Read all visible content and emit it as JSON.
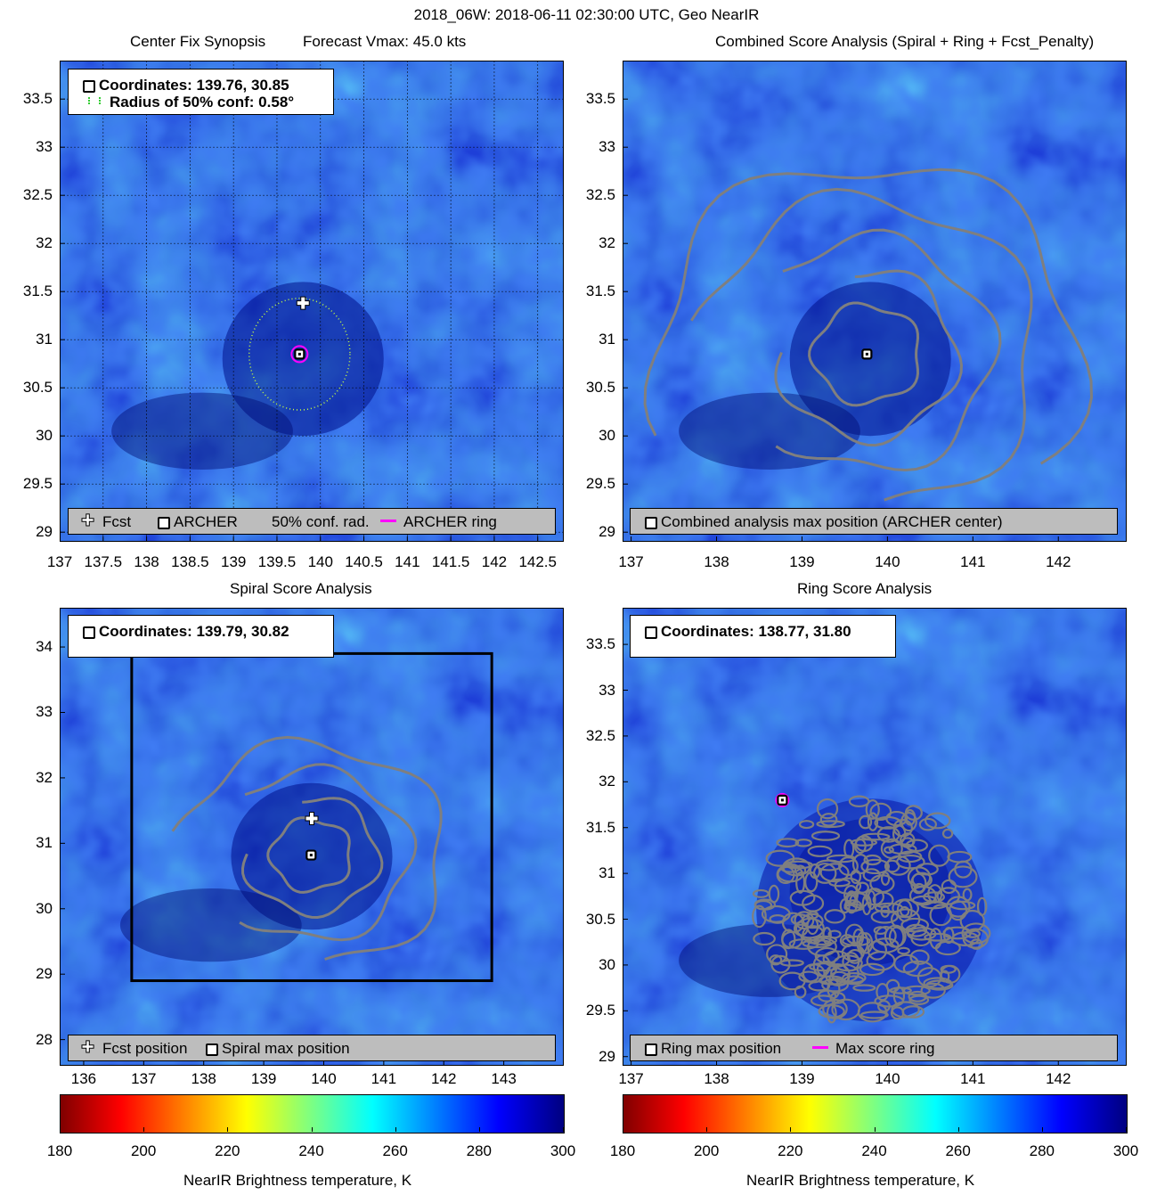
{
  "figure_title": "2018_06W: 2018-06-11 02:30:00 UTC, Geo NearIR",
  "colors": {
    "gray_line": "#7f7f7f",
    "magenta": "#ff00ff",
    "legend_bg": "#bdbdbd"
  },
  "chart_data": [
    {
      "type": "heatmap",
      "title_left": "Center Fix Synopsis",
      "title_right": "Forecast Vmax: 45.0 kts",
      "xlim": [
        137,
        142.8
      ],
      "ylim": [
        28.9,
        33.9
      ],
      "xticks": [
        "137",
        "137.5",
        "138",
        "138.5",
        "139",
        "139.5",
        "140",
        "140.5",
        "141",
        "141.5",
        "142",
        "142.5"
      ],
      "xtick_values": [
        137,
        137.5,
        138,
        138.5,
        139,
        139.5,
        140,
        140.5,
        141,
        141.5,
        142,
        142.5
      ],
      "yticks": [
        "29",
        "29.5",
        "30",
        "30.5",
        "31",
        "31.5",
        "32",
        "32.5",
        "33",
        "33.5"
      ],
      "ytick_values": [
        29,
        29.5,
        30,
        30.5,
        31,
        31.5,
        32,
        32.5,
        33,
        33.5
      ],
      "grid": true,
      "coordinates_text": "Coordinates: 139.76, 30.85",
      "radius_text": "Radius of 50% conf: 0.58°",
      "forecast_position": [
        139.8,
        31.38
      ],
      "archer_center": [
        139.76,
        30.85
      ],
      "conf_radius_deg": 0.58,
      "legend": {
        "fcst": "Fcst",
        "archer": "ARCHER",
        "conf": "50% conf. rad.",
        "ring": "ARCHER ring"
      }
    },
    {
      "type": "heatmap",
      "title": "Combined Score Analysis (Spiral + Ring + Fcst_Penalty)",
      "xlim": [
        136.9,
        142.8
      ],
      "ylim": [
        28.9,
        33.9
      ],
      "xticks": [
        "137",
        "138",
        "139",
        "140",
        "141",
        "142"
      ],
      "xtick_values": [
        137,
        138,
        139,
        140,
        141,
        142
      ],
      "yticks": [
        "29",
        "29.5",
        "30",
        "30.5",
        "31",
        "31.5",
        "32",
        "32.5",
        "33",
        "33.5"
      ],
      "ytick_values": [
        29,
        29.5,
        30,
        30.5,
        31,
        31.5,
        32,
        32.5,
        33,
        33.5
      ],
      "max_position": [
        139.76,
        30.85
      ],
      "legend": {
        "max": "Combined analysis max position (ARCHER center)"
      }
    },
    {
      "type": "heatmap",
      "title": "Spiral Score Analysis",
      "xlim": [
        135.6,
        144.0
      ],
      "ylim": [
        27.6,
        34.6
      ],
      "xticks": [
        "136",
        "137",
        "138",
        "139",
        "140",
        "141",
        "142",
        "143"
      ],
      "xtick_values": [
        136,
        137,
        138,
        139,
        140,
        141,
        142,
        143
      ],
      "yticks": [
        "28",
        "29",
        "30",
        "31",
        "32",
        "33",
        "34"
      ],
      "ytick_values": [
        28,
        29,
        30,
        31,
        32,
        33,
        34
      ],
      "coordinates_text": "Coordinates: 139.79, 30.82",
      "forecast_position": [
        139.8,
        31.38
      ],
      "max_position": [
        139.79,
        30.82
      ],
      "search_box": {
        "x": [
          136.8,
          142.8
        ],
        "y": [
          28.9,
          33.9
        ]
      },
      "legend": {
        "fcst": "Fcst position",
        "max": "Spiral max position"
      }
    },
    {
      "type": "heatmap",
      "title": "Ring Score Analysis",
      "xlim": [
        136.9,
        142.8
      ],
      "ylim": [
        28.9,
        33.9
      ],
      "xticks": [
        "137",
        "138",
        "139",
        "140",
        "141",
        "142"
      ],
      "xtick_values": [
        137,
        138,
        139,
        140,
        141,
        142
      ],
      "yticks": [
        "29",
        "29.5",
        "30",
        "30.5",
        "31",
        "31.5",
        "32",
        "32.5",
        "33",
        "33.5"
      ],
      "ytick_values": [
        29,
        29.5,
        30,
        30.5,
        31,
        31.5,
        32,
        32.5,
        33,
        33.5
      ],
      "coordinates_text": "Coordinates: 138.77, 31.80",
      "max_position": [
        138.77,
        31.8
      ],
      "legend": {
        "max": "Ring max position",
        "ring": "Max score ring"
      }
    }
  ],
  "colorbars": [
    {
      "ticks": [
        "180",
        "200",
        "220",
        "240",
        "260",
        "280",
        "300"
      ],
      "range": [
        180,
        300
      ],
      "label": "NearIR Brightness temperature, K"
    },
    {
      "ticks": [
        "180",
        "200",
        "220",
        "240",
        "260",
        "280",
        "300"
      ],
      "range": [
        180,
        300
      ],
      "label": "NearIR Brightness temperature, K"
    }
  ]
}
